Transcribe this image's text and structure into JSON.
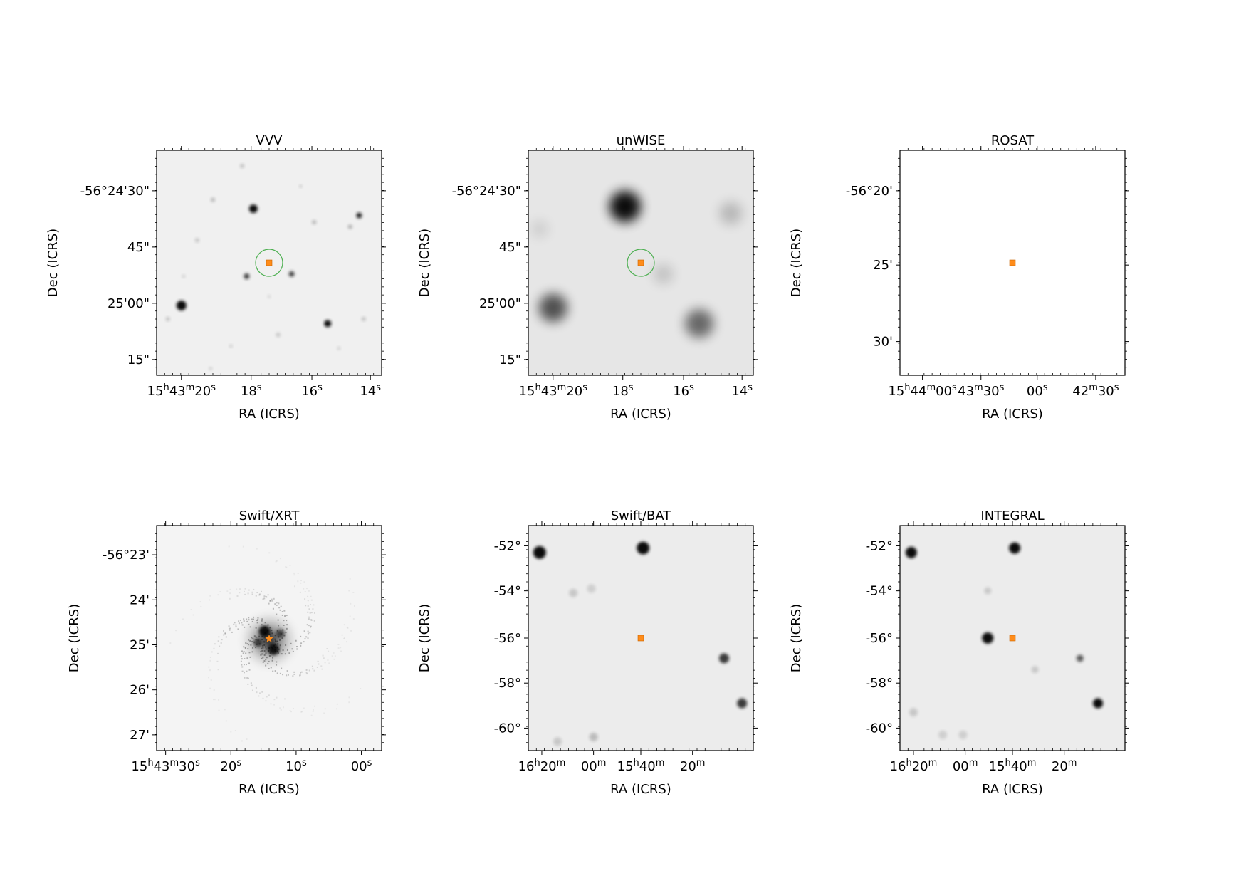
{
  "figure": {
    "source_marker_color": "#ff8c1a",
    "circle_color": "#4caf50",
    "panels": [
      {
        "title": "VVV",
        "xlabel": "RA (ICRS)",
        "ylabel": "Dec (ICRS)",
        "xticks": [
          "15h43m20s",
          "18s",
          "16s",
          "14s"
        ],
        "yticks": [
          "-56°24'30\"",
          "45\"",
          "25'00\"",
          "15\""
        ],
        "background": "#f0f0f0",
        "marker": "square",
        "circle": true
      },
      {
        "title": "unWISE",
        "xlabel": "RA (ICRS)",
        "ylabel": "Dec (ICRS)",
        "xticks": [
          "15h43m20s",
          "18s",
          "16s",
          "14s"
        ],
        "yticks": [
          "-56°24'30\"",
          "45\"",
          "25'00\"",
          "15\""
        ],
        "background": "#e6e6e6",
        "marker": "square",
        "circle": true
      },
      {
        "title": "ROSAT",
        "xlabel": "RA (ICRS)",
        "ylabel": "Dec (ICRS)",
        "xticks": [
          "15h44m00s",
          "43m30s",
          "00s",
          "42m30s"
        ],
        "yticks": [
          "-56°20'",
          "25'",
          "30'"
        ],
        "background": "#ffffff",
        "marker": "square",
        "circle": false
      },
      {
        "title": "Swift/XRT",
        "xlabel": "RA (ICRS)",
        "ylabel": "Dec (ICRS)",
        "xticks": [
          "15h43m30s",
          "20s",
          "10s",
          "00s"
        ],
        "yticks": [
          "-56°23'",
          "24'",
          "25'",
          "26'",
          "27'"
        ],
        "background": "#f4f4f4",
        "marker": "star",
        "circle": false
      },
      {
        "title": "Swift/BAT",
        "xlabel": "RA (ICRS)",
        "ylabel": "Dec (ICRS)",
        "xticks": [
          "16h20m",
          "00m",
          "15h40m",
          "20m"
        ],
        "yticks": [
          "-52°",
          "-54°",
          "-56°",
          "-58°",
          "-60°"
        ],
        "background": "#ececec",
        "marker": "square",
        "circle": false
      },
      {
        "title": "INTEGRAL",
        "xlabel": "RA (ICRS)",
        "ylabel": "Dec (ICRS)",
        "xticks": [
          "16h20m",
          "00m",
          "15h40m",
          "20m"
        ],
        "yticks": [
          "-52°",
          "-54°",
          "-56°",
          "-58°",
          "-60°"
        ],
        "background": "#ececec",
        "marker": "square",
        "circle": false
      }
    ]
  },
  "chart_data": [
    {
      "type": "heatmap",
      "title": "VVV",
      "xlabel": "RA (ICRS)",
      "ylabel": "Dec (ICRS)",
      "xticks": [
        "15h43m20s",
        "18s",
        "16s",
        "14s"
      ],
      "yticks": [
        "-56°24'30\"",
        "45\"",
        "25'00\"",
        "15\""
      ]
    },
    {
      "type": "heatmap",
      "title": "unWISE",
      "xlabel": "RA (ICRS)",
      "ylabel": "Dec (ICRS)",
      "xticks": [
        "15h43m20s",
        "18s",
        "16s",
        "14s"
      ],
      "yticks": [
        "-56°24'30\"",
        "45\"",
        "25'00\"",
        "15\""
      ]
    },
    {
      "type": "heatmap",
      "title": "ROSAT",
      "xlabel": "RA (ICRS)",
      "ylabel": "Dec (ICRS)",
      "xticks": [
        "15h44m00s",
        "43m30s",
        "00s",
        "42m30s"
      ],
      "yticks": [
        "-56°20'",
        "25'",
        "30'"
      ]
    },
    {
      "type": "heatmap",
      "title": "Swift/XRT",
      "xlabel": "RA (ICRS)",
      "ylabel": "Dec (ICRS)",
      "xticks": [
        "15h43m30s",
        "20s",
        "10s",
        "00s"
      ],
      "yticks": [
        "-56°23'",
        "24'",
        "25'",
        "26'",
        "27'"
      ]
    },
    {
      "type": "heatmap",
      "title": "Swift/BAT",
      "xlabel": "RA (ICRS)",
      "ylabel": "Dec (ICRS)",
      "xticks": [
        "16h20m",
        "00m",
        "15h40m",
        "20m"
      ],
      "yticks": [
        "-52°",
        "-54°",
        "-56°",
        "-58°",
        "-60°"
      ]
    },
    {
      "type": "heatmap",
      "title": "INTEGRAL",
      "xlabel": "RA (ICRS)",
      "ylabel": "Dec (ICRS)",
      "xticks": [
        "16h20m",
        "00m",
        "15h40m",
        "20m"
      ],
      "yticks": [
        "-52°",
        "-54°",
        "-56°",
        "-58°",
        "-60°"
      ]
    }
  ]
}
